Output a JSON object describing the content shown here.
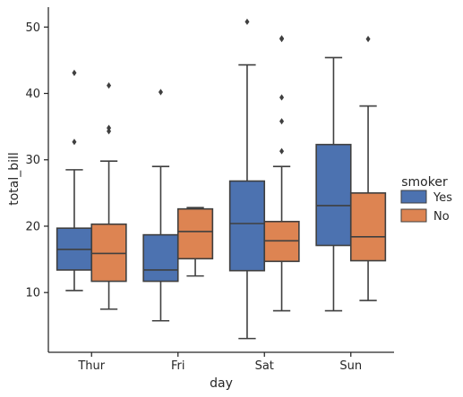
{
  "chart_data": {
    "type": "boxplot",
    "xlabel": "day",
    "ylabel": "total_bill",
    "categories": [
      "Thur",
      "Fri",
      "Sat",
      "Sun"
    ],
    "y_ticks": [
      10,
      20,
      30,
      40,
      50
    ],
    "ylim": [
      1,
      53
    ],
    "grid": false,
    "legend": {
      "title": "smoker",
      "placement": "right",
      "entries": [
        "Yes",
        "No"
      ]
    },
    "series": [
      {
        "name": "Yes",
        "color": "#4c72b0",
        "boxes": [
          {
            "category": "Thur",
            "whisker_low": 10.3,
            "q1": 13.4,
            "median": 16.5,
            "q3": 19.7,
            "whisker_high": 28.5,
            "outliers": [
              32.7,
              43.1
            ]
          },
          {
            "category": "Fri",
            "whisker_low": 5.75,
            "q1": 11.7,
            "median": 13.4,
            "q3": 18.7,
            "whisker_high": 29.0,
            "outliers": [
              40.2
            ]
          },
          {
            "category": "Sat",
            "whisker_low": 3.07,
            "q1": 13.3,
            "median": 20.4,
            "q3": 26.8,
            "whisker_high": 44.3,
            "outliers": [
              50.8
            ]
          },
          {
            "category": "Sun",
            "whisker_low": 7.25,
            "q1": 17.1,
            "median": 23.1,
            "q3": 32.3,
            "whisker_high": 45.4,
            "outliers": []
          }
        ]
      },
      {
        "name": "No",
        "color": "#dd8452",
        "boxes": [
          {
            "category": "Thur",
            "whisker_low": 7.5,
            "q1": 11.7,
            "median": 15.9,
            "q3": 20.3,
            "whisker_high": 29.8,
            "outliers": [
              34.3,
              34.8,
              41.2
            ]
          },
          {
            "category": "Fri",
            "whisker_low": 12.5,
            "q1": 15.1,
            "median": 19.2,
            "q3": 22.6,
            "whisker_high": 22.8,
            "outliers": []
          },
          {
            "category": "Sat",
            "whisker_low": 7.25,
            "q1": 14.7,
            "median": 17.8,
            "q3": 20.7,
            "whisker_high": 29.0,
            "outliers": [
              31.3,
              35.8,
              39.4,
              48.2,
              48.3
            ]
          },
          {
            "category": "Sun",
            "whisker_low": 8.8,
            "q1": 14.8,
            "median": 18.4,
            "q3": 25.0,
            "whisker_high": 38.1,
            "outliers": [
              48.2
            ]
          }
        ]
      }
    ]
  }
}
